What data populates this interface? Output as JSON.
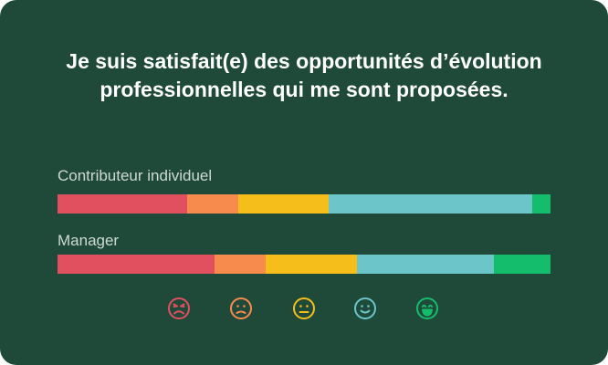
{
  "chart_data": {
    "type": "bar",
    "orientation": "horizontal",
    "stacked": true,
    "normalized": true,
    "title": "Je suis satisfait(e) des opportunités d’évolution professionnelles qui me sont proposées.",
    "categories": [
      "Contributeur individuel",
      "Manager"
    ],
    "series": [
      {
        "icon": "very-dissatisfied-face-icon",
        "color": "#e0505e",
        "values": [
          26.3,
          31.9
        ]
      },
      {
        "icon": "dissatisfied-face-icon",
        "color": "#f78b4e",
        "values": [
          10.4,
          10.4
        ]
      },
      {
        "icon": "neutral-face-icon",
        "color": "#f6be1a",
        "values": [
          18.3,
          18.5
        ]
      },
      {
        "icon": "satisfied-face-icon",
        "color": "#6cc6c9",
        "values": [
          41.3,
          27.8
        ]
      },
      {
        "icon": "very-satisfied-face-icon",
        "color": "#14bd6b",
        "values": [
          3.7,
          11.4
        ]
      }
    ],
    "xlim": [
      0,
      100
    ],
    "grid": false,
    "legend": "bottom"
  }
}
